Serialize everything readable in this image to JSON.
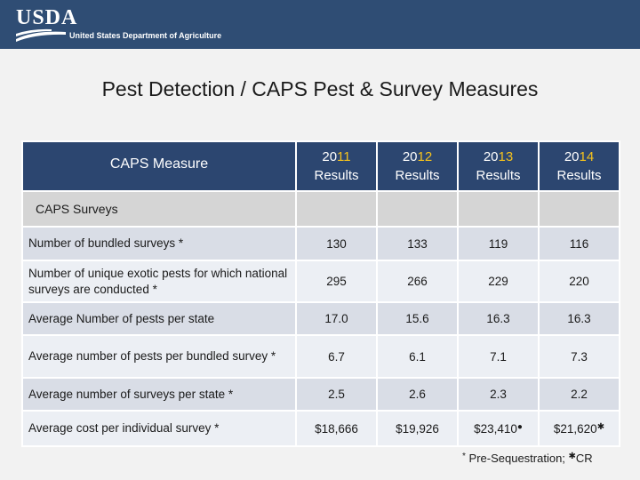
{
  "header": {
    "logo_text": "USDA",
    "logo_subtitle": "United States Department of Agriculture"
  },
  "title": "Pest Detection / CAPS Pest & Survey Measures",
  "table": {
    "measure_header": "CAPS Measure",
    "years": [
      {
        "prefix": "20",
        "suffix": "11",
        "label": "Results"
      },
      {
        "prefix": "20",
        "suffix": "12",
        "label": "Results"
      },
      {
        "prefix": "20",
        "suffix": "13",
        "label": "Results"
      },
      {
        "prefix": "20",
        "suffix": "14",
        "label": "Results"
      }
    ],
    "section_label": "CAPS Surveys",
    "rows": [
      {
        "label": "Number of bundled surveys *",
        "values": [
          "130",
          "133",
          "119",
          "116"
        ]
      },
      {
        "label": "Number of unique exotic pests for which national surveys are conducted *",
        "values": [
          "295",
          "266",
          "229",
          "220"
        ]
      },
      {
        "label": "Average Number of pests per state",
        "values": [
          "17.0",
          "15.6",
          "16.3",
          "16.3"
        ]
      },
      {
        "label": "Average number of pests per bundled survey *",
        "values": [
          "6.7",
          "6.1",
          "7.1",
          "7.3"
        ]
      },
      {
        "label": "Average number of surveys per state *",
        "values": [
          "2.5",
          "2.6",
          "2.3",
          "2.2"
        ]
      },
      {
        "label": "Average cost per individual survey *",
        "values": [
          "$18,666",
          "$19,926",
          "$23,410",
          "$21,620"
        ],
        "marks": [
          "",
          "",
          "●",
          "✱"
        ]
      }
    ]
  },
  "footnote": {
    "mark1": "*",
    "text1": " Pre-Sequestration; ",
    "mark2": "✱",
    "text2": "CR"
  }
}
